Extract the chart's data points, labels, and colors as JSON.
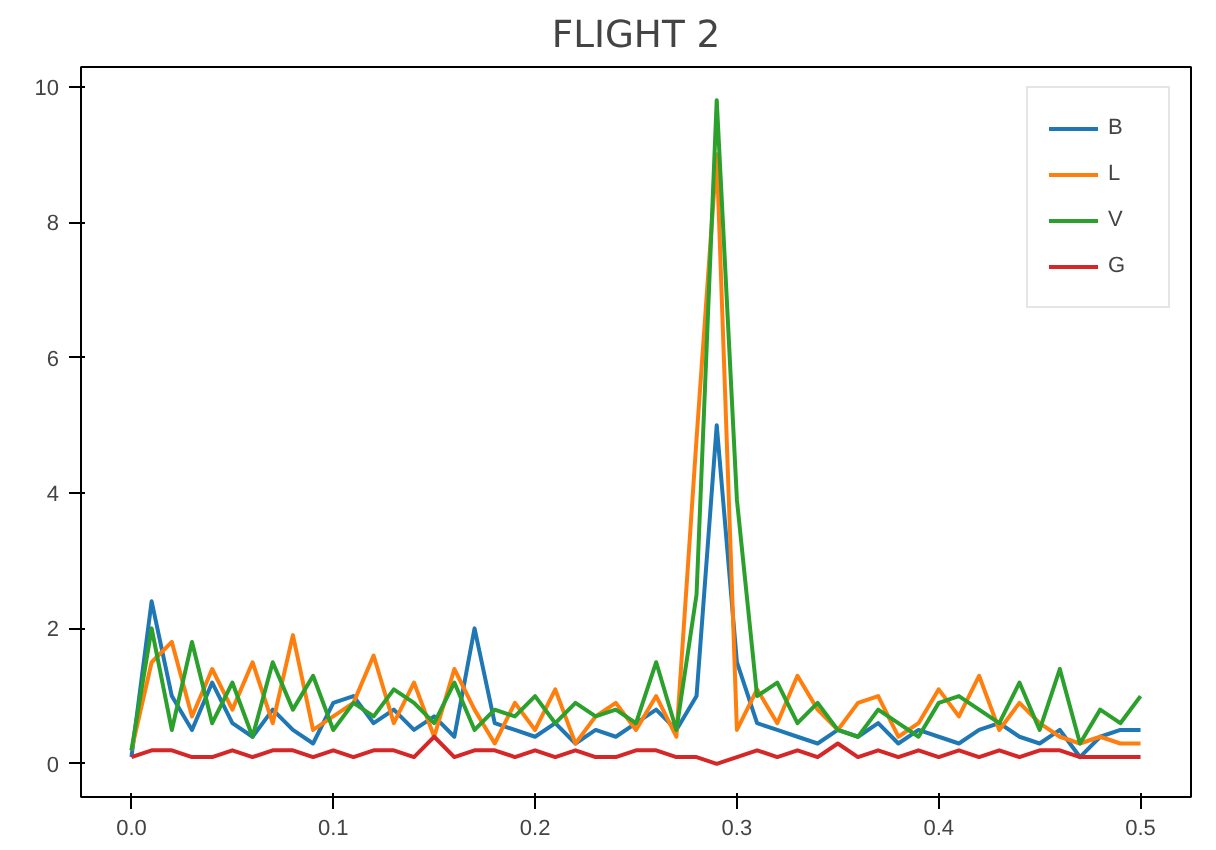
{
  "chart_data": {
    "type": "line",
    "title": "FLIGHT 2",
    "x": [
      0,
      0.01,
      0.02,
      0.03,
      0.04,
      0.05,
      0.06,
      0.07,
      0.08,
      0.09,
      0.1,
      0.11,
      0.12,
      0.13,
      0.14,
      0.15,
      0.16,
      0.17,
      0.18,
      0.19,
      0.2,
      0.21,
      0.22,
      0.23,
      0.24,
      0.25,
      0.26,
      0.27,
      0.28,
      0.29,
      0.3,
      0.31,
      0.32,
      0.33,
      0.34,
      0.35,
      0.36,
      0.37,
      0.38,
      0.39,
      0.4,
      0.41,
      0.42,
      0.43,
      0.44,
      0.45,
      0.46,
      0.47,
      0.48,
      0.49,
      0.5
    ],
    "series": [
      {
        "name": "B",
        "color": "#1f77b4",
        "values": [
          0.1,
          2.4,
          1.0,
          0.5,
          1.2,
          0.6,
          0.4,
          0.8,
          0.5,
          0.3,
          0.9,
          1.0,
          0.6,
          0.8,
          0.5,
          0.7,
          0.4,
          2.0,
          0.6,
          0.5,
          0.4,
          0.6,
          0.3,
          0.5,
          0.4,
          0.6,
          0.8,
          0.5,
          1.0,
          5.0,
          1.5,
          0.6,
          0.5,
          0.4,
          0.3,
          0.5,
          0.4,
          0.6,
          0.3,
          0.5,
          0.4,
          0.3,
          0.5,
          0.6,
          0.4,
          0.3,
          0.5,
          0.1,
          0.4,
          0.5,
          0.5
        ]
      },
      {
        "name": "L",
        "color": "#ff7f0e",
        "values": [
          0.2,
          1.5,
          1.8,
          0.7,
          1.4,
          0.8,
          1.5,
          0.6,
          1.9,
          0.5,
          0.7,
          0.9,
          1.6,
          0.6,
          1.2,
          0.4,
          1.4,
          0.8,
          0.3,
          0.9,
          0.5,
          1.1,
          0.3,
          0.7,
          0.9,
          0.5,
          1.0,
          0.4,
          4.8,
          9.0,
          0.5,
          1.1,
          0.6,
          1.3,
          0.8,
          0.5,
          0.9,
          1.0,
          0.4,
          0.6,
          1.1,
          0.7,
          1.3,
          0.5,
          0.9,
          0.6,
          0.4,
          0.3,
          0.4,
          0.3,
          0.3
        ]
      },
      {
        "name": "V",
        "color": "#2ca02c",
        "values": [
          0.2,
          2.0,
          0.5,
          1.8,
          0.6,
          1.2,
          0.4,
          1.5,
          0.8,
          1.3,
          0.5,
          0.9,
          0.7,
          1.1,
          0.9,
          0.6,
          1.2,
          0.5,
          0.8,
          0.7,
          1.0,
          0.6,
          0.9,
          0.7,
          0.8,
          0.6,
          1.5,
          0.5,
          2.5,
          9.8,
          3.9,
          1.0,
          1.2,
          0.6,
          0.9,
          0.5,
          0.4,
          0.8,
          0.6,
          0.4,
          0.9,
          1.0,
          0.8,
          0.6,
          1.2,
          0.5,
          1.4,
          0.3,
          0.8,
          0.6,
          1.0
        ]
      },
      {
        "name": "G",
        "color": "#d62728",
        "values": [
          0.1,
          0.2,
          0.2,
          0.1,
          0.1,
          0.2,
          0.1,
          0.2,
          0.2,
          0.1,
          0.2,
          0.1,
          0.2,
          0.2,
          0.1,
          0.4,
          0.1,
          0.2,
          0.2,
          0.1,
          0.2,
          0.1,
          0.2,
          0.1,
          0.1,
          0.2,
          0.2,
          0.1,
          0.1,
          0.0,
          0.1,
          0.2,
          0.1,
          0.2,
          0.1,
          0.3,
          0.1,
          0.2,
          0.1,
          0.2,
          0.1,
          0.2,
          0.1,
          0.2,
          0.1,
          0.2,
          0.2,
          0.1,
          0.1,
          0.1,
          0.1
        ]
      }
    ],
    "xlim": [
      -0.025,
      0.525
    ],
    "ylim": [
      -0.49,
      10.29
    ],
    "xticks": [
      {
        "value": 0,
        "label": "0.0"
      },
      0.1,
      0.2,
      0.3,
      0.4,
      0.5
    ],
    "yticks": [
      0,
      2,
      4,
      6,
      8,
      10
    ],
    "grid": false,
    "legend": "top right",
    "line_style": "solid",
    "marker": "none"
  }
}
